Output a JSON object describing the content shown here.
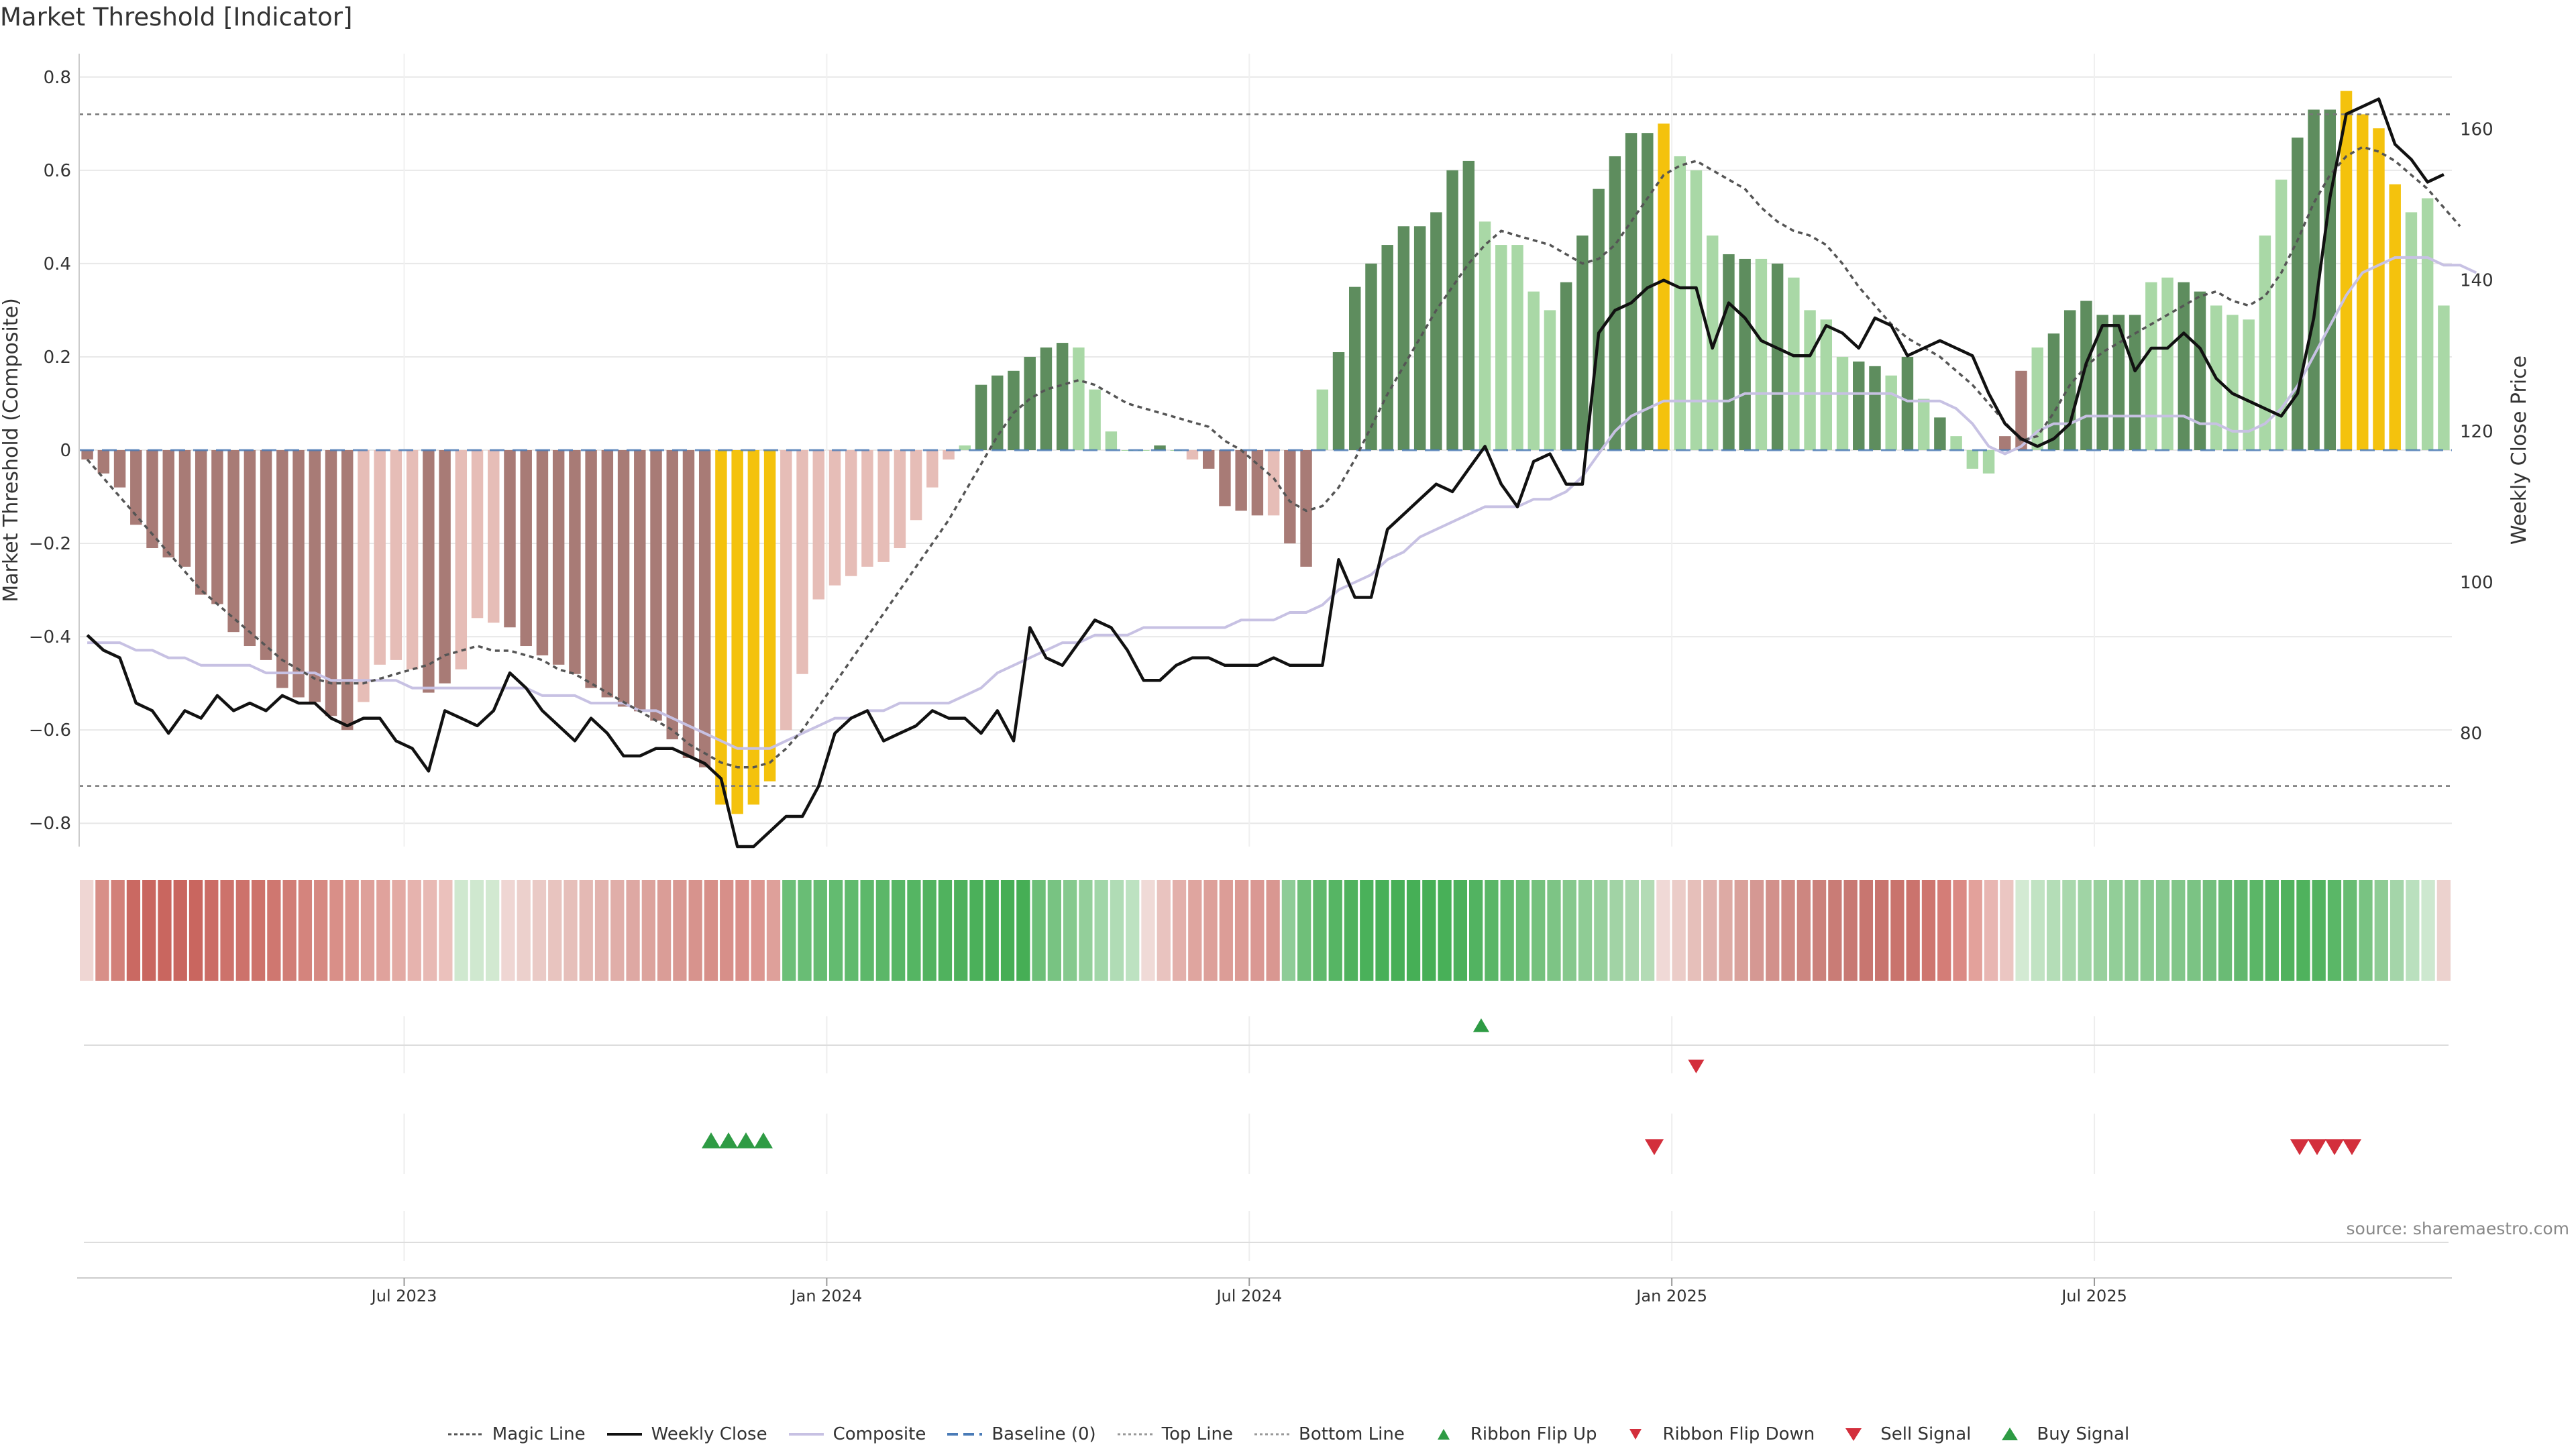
{
  "title": "Market Threshold [Indicator]",
  "source": "source: sharemaestro.com",
  "chart_data": {
    "type": "bar",
    "left_axis": {
      "label": "Market Threshold (Composite)",
      "range": [
        -0.85,
        0.85
      ],
      "ticks": [
        -0.8,
        -0.6,
        -0.4,
        -0.2,
        0,
        0.2,
        0.4,
        0.6,
        0.8
      ],
      "tick_labels": [
        "−0.8",
        "−0.6",
        "−0.4",
        "−0.2",
        "0",
        "0.2",
        "0.4",
        "0.6",
        "0.8"
      ]
    },
    "right_axis": {
      "label": "Weekly Close Price",
      "range": [
        65,
        170
      ],
      "ticks": [
        80,
        100,
        120,
        140,
        160
      ],
      "tick_labels": [
        "80",
        "100",
        "120",
        "140",
        "160"
      ]
    },
    "x_axis": {
      "start_week": 0,
      "end_week": 143,
      "ticks": [
        {
          "week": 19.5,
          "label": "Jul 2023"
        },
        {
          "week": 45.5,
          "label": "Jan 2024"
        },
        {
          "week": 71.5,
          "label": "Jul 2024"
        },
        {
          "week": 97.5,
          "label": "Jan 2025"
        },
        {
          "week": 123.5,
          "label": "Jul 2025"
        }
      ]
    },
    "top_line": 0.72,
    "bottom_line": -0.72,
    "composite_bars": [
      -0.02,
      -0.05,
      -0.08,
      -0.16,
      -0.21,
      -0.23,
      -0.25,
      -0.31,
      -0.33,
      -0.39,
      -0.42,
      -0.45,
      -0.51,
      -0.53,
      -0.54,
      -0.57,
      -0.6,
      -0.54,
      -0.46,
      -0.45,
      -0.47,
      -0.52,
      -0.5,
      -0.47,
      -0.36,
      -0.37,
      -0.38,
      -0.42,
      -0.44,
      -0.46,
      -0.48,
      -0.51,
      -0.53,
      -0.55,
      -0.56,
      -0.58,
      -0.62,
      -0.66,
      -0.68,
      -0.76,
      -0.78,
      -0.76,
      -0.71,
      -0.6,
      -0.48,
      -0.32,
      -0.29,
      -0.27,
      -0.25,
      -0.24,
      -0.21,
      -0.15,
      -0.08,
      -0.02,
      0.01,
      0.14,
      0.16,
      0.17,
      0.2,
      0.22,
      0.23,
      0.22,
      0.13,
      0.04,
      0.0,
      0.0,
      0.01,
      0.0,
      -0.02,
      -0.04,
      -0.12,
      -0.13,
      -0.14,
      -0.14,
      -0.2,
      -0.25,
      0.13,
      0.21,
      0.35,
      0.4,
      0.44,
      0.48,
      0.48,
      0.51,
      0.6,
      0.62,
      0.49,
      0.44,
      0.44,
      0.34,
      0.3,
      0.36,
      0.46,
      0.56,
      0.63,
      0.68,
      0.68,
      0.7,
      0.63,
      0.6,
      0.46,
      0.42,
      0.41,
      0.41,
      0.4,
      0.37,
      0.3,
      0.28,
      0.2,
      0.19,
      0.18,
      0.16,
      0.2,
      0.11,
      0.07,
      0.03,
      -0.04,
      -0.05,
      0.03,
      0.17,
      0.22,
      0.25,
      0.3,
      0.32,
      0.29,
      0.29,
      0.29,
      0.36,
      0.37,
      0.36,
      0.34,
      0.31,
      0.29,
      0.28,
      0.46,
      0.58,
      0.67,
      0.73,
      0.73,
      0.77,
      0.72,
      0.69,
      0.57,
      0.51,
      0.54,
      0.31
    ],
    "bar_colors": {
      "strong_negative": "#a87b76",
      "weak_negative": "#e6bdb7",
      "strong_positive": "#5e8d5e",
      "weak_positive": "#a9d8a6",
      "extreme": "#f4c20d"
    },
    "bar_classes": [
      "sn",
      "sn",
      "sn",
      "sn",
      "sn",
      "sn",
      "sn",
      "sn",
      "sn",
      "sn",
      "sn",
      "sn",
      "sn",
      "sn",
      "sn",
      "sn",
      "sn",
      "wn",
      "wn",
      "wn",
      "wn",
      "sn",
      "sn",
      "wn",
      "wn",
      "wn",
      "sn",
      "sn",
      "sn",
      "sn",
      "sn",
      "sn",
      "sn",
      "sn",
      "sn",
      "sn",
      "sn",
      "sn",
      "sn",
      "ex",
      "ex",
      "ex",
      "ex",
      "wn",
      "wn",
      "wn",
      "wn",
      "wn",
      "wn",
      "wn",
      "wn",
      "wn",
      "wn",
      "wn",
      "wp",
      "sp",
      "sp",
      "sp",
      "sp",
      "sp",
      "sp",
      "wp",
      "wp",
      "wp",
      "wp",
      "wp",
      "sp",
      "wp",
      "wn",
      "sn",
      "sn",
      "sn",
      "sn",
      "wn",
      "sn",
      "sn",
      "wp",
      "sp",
      "sp",
      "sp",
      "sp",
      "sp",
      "sp",
      "sp",
      "sp",
      "sp",
      "wp",
      "wp",
      "wp",
      "wp",
      "wp",
      "sp",
      "sp",
      "sp",
      "sp",
      "sp",
      "sp",
      "ex",
      "wp",
      "wp",
      "wp",
      "sp",
      "sp",
      "wp",
      "sp",
      "wp",
      "wp",
      "wp",
      "wp",
      "sp",
      "sp",
      "wp",
      "sp",
      "wp",
      "sp",
      "wp",
      "wp",
      "wp",
      "sn",
      "sn",
      "wp",
      "sp",
      "sp",
      "sp",
      "sp",
      "sp",
      "sp",
      "wp",
      "wp",
      "sp",
      "sp",
      "wp",
      "wp",
      "wp",
      "wp",
      "wp",
      "sp",
      "sp",
      "sp",
      "ex",
      "ex",
      "ex",
      "ex",
      "wp",
      "wp",
      "wp",
      "sp",
      "wp"
    ],
    "series": [
      {
        "name": "Weekly Close",
        "axis": "right",
        "color": "#111111",
        "values": [
          93,
          91,
          90,
          84,
          83,
          80,
          83,
          82,
          85,
          83,
          84,
          83,
          85,
          84,
          84,
          82,
          81,
          82,
          82,
          79,
          78,
          75,
          83,
          82,
          81,
          83,
          88,
          86,
          83,
          81,
          79,
          82,
          80,
          77,
          77,
          78,
          78,
          77,
          76,
          74,
          65,
          65,
          67,
          69,
          69,
          73,
          80,
          82,
          83,
          79,
          80,
          81,
          83,
          82,
          82,
          80,
          83,
          79,
          94,
          90,
          89,
          92,
          95,
          94,
          91,
          87,
          87,
          89,
          90,
          90,
          89,
          89,
          89,
          90,
          89,
          89,
          89,
          103,
          98,
          98,
          107,
          109,
          111,
          113,
          112,
          115,
          118,
          113,
          110,
          116,
          117,
          113,
          113,
          133,
          136,
          137,
          139,
          140,
          139,
          139,
          131,
          137,
          135,
          132,
          131,
          130,
          130,
          134,
          133,
          131,
          135,
          134,
          130,
          131,
          132,
          131,
          130,
          125,
          121,
          119,
          118,
          119,
          121,
          129,
          134,
          134,
          128,
          131,
          131,
          133,
          131,
          127,
          125,
          124,
          123,
          122,
          125,
          135,
          151,
          162,
          163,
          164,
          158,
          156,
          153,
          154,
          151,
          152,
          157,
          155,
          150,
          143
        ],
        "note": "price path truncated for display purposes"
      },
      {
        "name": "Composite",
        "axis": "right",
        "color": "#c7c1e3"
      },
      {
        "name": "Magic Line",
        "axis": "left",
        "color": "#555555"
      }
    ],
    "magic_line": [
      -0.02,
      -0.06,
      -0.1,
      -0.14,
      -0.18,
      -0.22,
      -0.26,
      -0.3,
      -0.33,
      -0.36,
      -0.39,
      -0.42,
      -0.45,
      -0.47,
      -0.49,
      -0.5,
      -0.5,
      -0.5,
      -0.49,
      -0.48,
      -0.47,
      -0.46,
      -0.44,
      -0.43,
      -0.42,
      -0.43,
      -0.43,
      -0.44,
      -0.45,
      -0.47,
      -0.48,
      -0.5,
      -0.52,
      -0.54,
      -0.56,
      -0.58,
      -0.6,
      -0.63,
      -0.65,
      -0.67,
      -0.68,
      -0.68,
      -0.67,
      -0.64,
      -0.6,
      -0.55,
      -0.5,
      -0.45,
      -0.4,
      -0.35,
      -0.3,
      -0.25,
      -0.2,
      -0.15,
      -0.09,
      -0.03,
      0.03,
      0.08,
      0.11,
      0.13,
      0.14,
      0.15,
      0.14,
      0.12,
      0.1,
      0.09,
      0.08,
      0.07,
      0.06,
      0.05,
      0.02,
      0.0,
      -0.03,
      -0.06,
      -0.11,
      -0.13,
      -0.12,
      -0.08,
      -0.02,
      0.05,
      0.12,
      0.18,
      0.24,
      0.3,
      0.35,
      0.4,
      0.44,
      0.47,
      0.46,
      0.45,
      0.44,
      0.42,
      0.4,
      0.41,
      0.44,
      0.49,
      0.54,
      0.59,
      0.61,
      0.62,
      0.6,
      0.58,
      0.56,
      0.52,
      0.49,
      0.47,
      0.46,
      0.44,
      0.4,
      0.35,
      0.31,
      0.27,
      0.24,
      0.22,
      0.2,
      0.17,
      0.14,
      0.1,
      0.06,
      0.02,
      0.03,
      0.08,
      0.14,
      0.18,
      0.21,
      0.23,
      0.25,
      0.27,
      0.29,
      0.31,
      0.33,
      0.34,
      0.32,
      0.31,
      0.33,
      0.38,
      0.45,
      0.53,
      0.59,
      0.63,
      0.65,
      0.64,
      0.62,
      0.59,
      0.56,
      0.52,
      0.48
    ],
    "composite_line": [
      92,
      92,
      92,
      91,
      91,
      90,
      90,
      89,
      89,
      89,
      89,
      88,
      88,
      88,
      88,
      87,
      87,
      87,
      87,
      87,
      86,
      86,
      86,
      86,
      86,
      86,
      86,
      86,
      85,
      85,
      85,
      84,
      84,
      84,
      83,
      83,
      82,
      81,
      80,
      79,
      78,
      78,
      78,
      79,
      80,
      81,
      82,
      82,
      83,
      83,
      84,
      84,
      84,
      84,
      85,
      86,
      88,
      89,
      90,
      91,
      92,
      92,
      93,
      93,
      93,
      94,
      94,
      94,
      94,
      94,
      94,
      95,
      95,
      95,
      96,
      96,
      97,
      99,
      100,
      101,
      103,
      104,
      106,
      107,
      108,
      109,
      110,
      110,
      110,
      111,
      111,
      112,
      114,
      117,
      120,
      122,
      123,
      124,
      124,
      124,
      124,
      124,
      125,
      125,
      125,
      125,
      125,
      125,
      125,
      125,
      125,
      125,
      124,
      124,
      124,
      123,
      121,
      118,
      117,
      118,
      120,
      121,
      121,
      122,
      122,
      122,
      122,
      122,
      122,
      122,
      121,
      121,
      120,
      120,
      121,
      123,
      126,
      130,
      134,
      138,
      141,
      142,
      143,
      143,
      143,
      142,
      142,
      141
    ]
  },
  "ribbon": {
    "colors": [
      "#efd6d3",
      "#d88f88",
      "#d28079",
      "#ca6962",
      "#c9665f",
      "#c9665f",
      "#c9665f",
      "#c9665f",
      "#cb6c65",
      "#cd726b",
      "#cd726b",
      "#cd726b",
      "#cf7770",
      "#d17d76",
      "#d4847d",
      "#d68982",
      "#d98f88",
      "#dc968f",
      "#dea09a",
      "#e0a29c",
      "#e3aaa4",
      "#e6b3ae",
      "#e8b9b4",
      "#ebc1bc",
      "#cfe8cf",
      "#cfe8cf",
      "#d2e9d1",
      "#efd6d3",
      "#ecd0cc",
      "#eacac6",
      "#e8c4bf",
      "#e6bfba",
      "#e4b9b4",
      "#e2b3ae",
      "#e0aea9",
      "#dea8a3",
      "#dca39d",
      "#da9d97",
      "#d99892",
      "#d7938d",
      "#d78f89",
      "#d78f89",
      "#d98f89",
      "#dc9690",
      "#dea09a",
      "#6cbf78",
      "#69bd75",
      "#66bc72",
      "#63bb70",
      "#60ba6d",
      "#5db86a",
      "#5bb768",
      "#58b666",
      "#55b563",
      "#52b360",
      "#50b25e",
      "#4eb15c",
      "#4bb05a",
      "#48af57",
      "#46ae55",
      "#46ae55",
      "#6dbf78",
      "#78c382",
      "#85c98e",
      "#93cf9a",
      "#a1d6a8",
      "#b0dcb5",
      "#bde2c1",
      "#f0dad7",
      "#e9c3bf",
      "#e3b0ab",
      "#dfa59f",
      "#dda09a",
      "#dc9d97",
      "#db9a94",
      "#da9893",
      "#d99791",
      "#8ecc97",
      "#6fbf79",
      "#5fb96c",
      "#56b564",
      "#4fb25e",
      "#4ab15a",
      "#48b058",
      "#47af57",
      "#46af56",
      "#46af56",
      "#48b058",
      "#4cb15c",
      "#52b361",
      "#5ab667",
      "#62ba6e",
      "#6bbd75",
      "#74c17d",
      "#7dc485",
      "#86c88d",
      "#8fcc95",
      "#98d09d",
      "#a1d3a5",
      "#aad7ad",
      "#b3dbb5",
      "#f0d9d6",
      "#ebccc8",
      "#e6bfba",
      "#e1b3ae",
      "#ddaaa4",
      "#d9a19b",
      "#d59893",
      "#d2918b",
      "#d08b85",
      "#cd8680",
      "#cb817b",
      "#c97c76",
      "#c87973",
      "#c87670",
      "#c8746e",
      "#c9736d",
      "#cb736d",
      "#ce766f",
      "#d47d77",
      "#db8a84",
      "#e3a19b",
      "#e8b6b2",
      "#ebc6c2",
      "#d3ead3",
      "#c1e3c3",
      "#b4ddb7",
      "#a9d8ad",
      "#a0d4a5",
      "#98d09d",
      "#92ce98",
      "#8ecb94",
      "#8bca91",
      "#87c88e",
      "#82c68a",
      "#7bc384",
      "#73bf7d",
      "#6abb75",
      "#62b86e",
      "#5bb667",
      "#55b462",
      "#50b25e",
      "#4fb25d",
      "#52b360",
      "#5ab767",
      "#67bc72",
      "#79c382",
      "#8ecc95",
      "#a4d5a9",
      "#bae0be",
      "#cde8cf",
      "#ecd2ce"
    ]
  },
  "signals": {
    "ribbon_flip_up": [
      19,
      42,
      62,
      120
    ],
    "ribbon_flip_down": [
      22,
      51,
      79,
      106
    ],
    "buy_signal": [
      29,
      30,
      31,
      32
    ],
    "sell_signal": [
      73,
      115,
      116,
      117,
      118
    ]
  },
  "legend": [
    {
      "key": "magic",
      "label": "Magic Line"
    },
    {
      "key": "close",
      "label": "Weekly Close"
    },
    {
      "key": "composite",
      "label": "Composite"
    },
    {
      "key": "baseline",
      "label": "Baseline (0)"
    },
    {
      "key": "top",
      "label": "Top Line"
    },
    {
      "key": "bottom",
      "label": "Bottom Line"
    },
    {
      "key": "flip_up",
      "label": "Ribbon Flip Up"
    },
    {
      "key": "flip_down",
      "label": "Ribbon Flip Down"
    },
    {
      "key": "sell",
      "label": "Sell Signal"
    },
    {
      "key": "buy",
      "label": "Buy Signal"
    }
  ],
  "colors": {
    "grid": "#e8e8e8",
    "baseline": "#4a7bb7",
    "up_marker": "#2e9b44",
    "down_marker": "#d32f3c"
  }
}
